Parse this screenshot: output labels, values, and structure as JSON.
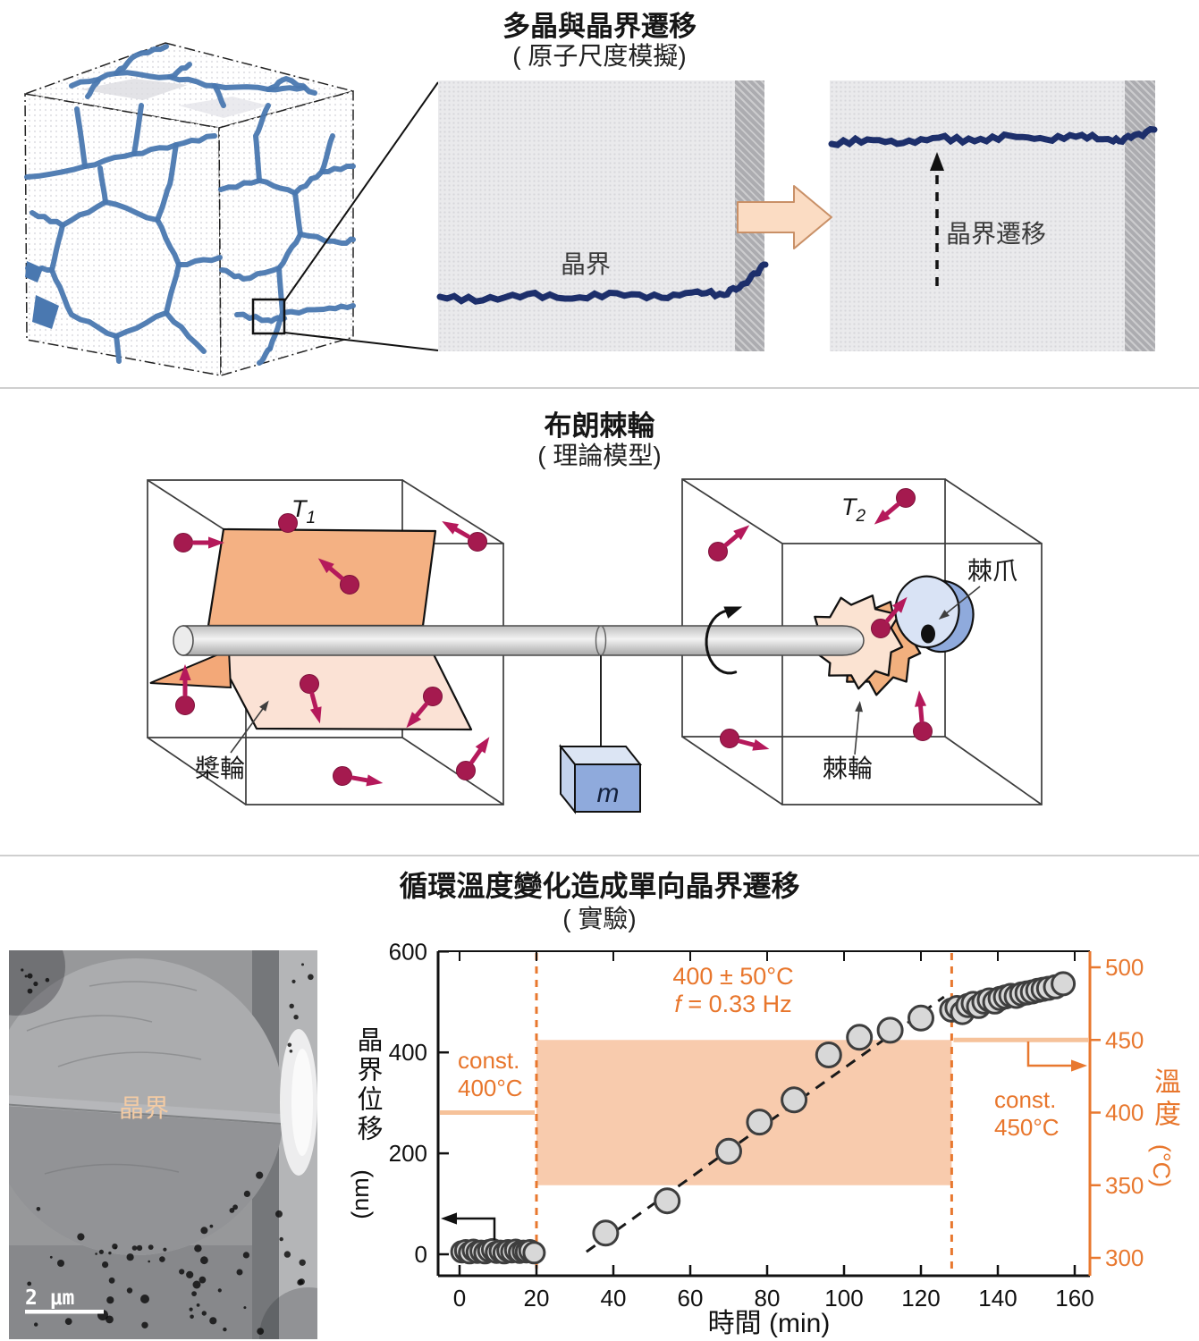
{
  "sections": {
    "s1": {
      "title": "多晶與晶界遷移",
      "subtitle": "( 原子尺度模擬)",
      "gb_label": "晶界",
      "gb_migration_label": "晶界遷移"
    },
    "s2": {
      "title": "布朗棘輪",
      "subtitle": "( 理論模型)",
      "T1": "T",
      "T1sub": "1",
      "T2": "T",
      "T2sub": "2",
      "paddle_label": "槳輪",
      "ratchet_label": "棘輪",
      "pawl_label": "棘爪",
      "mass_label": "m"
    },
    "s3": {
      "title": "循環溫度變化造成單向晶界遷移",
      "subtitle": "( 實驗)",
      "tem_gb_label": "晶界",
      "tem_scalebar_label": "2 μm"
    }
  },
  "chart_data": {
    "type": "scatter",
    "title": "循環溫度變化造成單向晶界遷移 (實驗)",
    "xlabel": "時間 (min)",
    "ylabel_left_cjk": "晶界位移",
    "ylabel_left_unit": "(nm)",
    "ylabel_right_cjk": "溫度",
    "ylabel_right_unit": "(°C)",
    "xlim": [
      -6,
      164
    ],
    "ylim_left": [
      -42,
      600
    ],
    "ylim_right": [
      288,
      511
    ],
    "x_ticks": [
      0,
      20,
      40,
      60,
      80,
      100,
      120,
      140,
      160
    ],
    "y_ticks_left": [
      0,
      200,
      400,
      600
    ],
    "y_ticks_right": [
      300,
      350,
      400,
      450,
      500
    ],
    "grid": false,
    "phase_boundaries_min": [
      20,
      128
    ],
    "temperature_profile": [
      {
        "phase": "constant",
        "t_range_min": [
          -6,
          20
        ],
        "temp_C": 400
      },
      {
        "phase": "cycling",
        "t_range_min": [
          20,
          128
        ],
        "temp_C_range": [
          350,
          450
        ],
        "freq_Hz": 0.33
      },
      {
        "phase": "constant",
        "t_range_min": [
          128,
          164
        ],
        "temp_C": 450
      }
    ],
    "displacement_points_nm": {
      "const_400C": [
        [
          0.6,
          5
        ],
        [
          1.6,
          7
        ],
        [
          2.6,
          3
        ],
        [
          3.6,
          8
        ],
        [
          4.6,
          4
        ],
        [
          5.6,
          6
        ],
        [
          6.6,
          3
        ],
        [
          7.6,
          7
        ],
        [
          8.6,
          9
        ],
        [
          9.6,
          4
        ],
        [
          10.6,
          6
        ],
        [
          11.6,
          3
        ],
        [
          12.6,
          7
        ],
        [
          13.6,
          5
        ],
        [
          14.6,
          8
        ],
        [
          15.6,
          4
        ],
        [
          16.6,
          6
        ],
        [
          17.4,
          5
        ],
        [
          18.3,
          7
        ],
        [
          19.4,
          3
        ]
      ],
      "cycling": [
        [
          38,
          42
        ],
        [
          54,
          106
        ],
        [
          70,
          204
        ],
        [
          78,
          262
        ],
        [
          87,
          306
        ],
        [
          96,
          395
        ],
        [
          104,
          430
        ],
        [
          112,
          444
        ],
        [
          120,
          468
        ]
      ],
      "const_450C": [
        [
          128,
          484
        ],
        [
          129.4,
          489
        ],
        [
          130.8,
          479
        ],
        [
          132.2,
          493
        ],
        [
          133.6,
          497
        ],
        [
          135,
          491
        ],
        [
          136.4,
          500
        ],
        [
          137.8,
          504
        ],
        [
          139.2,
          500
        ],
        [
          140.6,
          507
        ],
        [
          142,
          510
        ],
        [
          143.4,
          513
        ],
        [
          144.8,
          511
        ],
        [
          146.2,
          516
        ],
        [
          147.6,
          518
        ],
        [
          149,
          520
        ],
        [
          150.4,
          523
        ],
        [
          151.8,
          525
        ],
        [
          153.2,
          527
        ],
        [
          155,
          530
        ],
        [
          157,
          536
        ]
      ]
    },
    "trendline": {
      "style": "dashed",
      "from": [
        33,
        5
      ],
      "to": [
        126,
        510
      ]
    },
    "annotations": {
      "cycling_temp": "400 ± 50°C",
      "freq_prefix": "f",
      "freq_rest": " = 0.33 Hz",
      "const400_line1": "const.",
      "const400_line2": "400°C",
      "const450_line1": "const.",
      "const450_line2": "450°C"
    },
    "colors": {
      "orange": "#E8782F",
      "band": "#F8CBAD",
      "flat_line": "#F6C29A",
      "point_fill": "#D8D8D8",
      "point_stroke": "#3E3E3E",
      "trend": "#1a1a1a",
      "navy_boundary": "#1D2F6B",
      "grain_blue": "#4A78B0",
      "particle_maroon": "#A51A4F"
    },
    "legend": null
  }
}
